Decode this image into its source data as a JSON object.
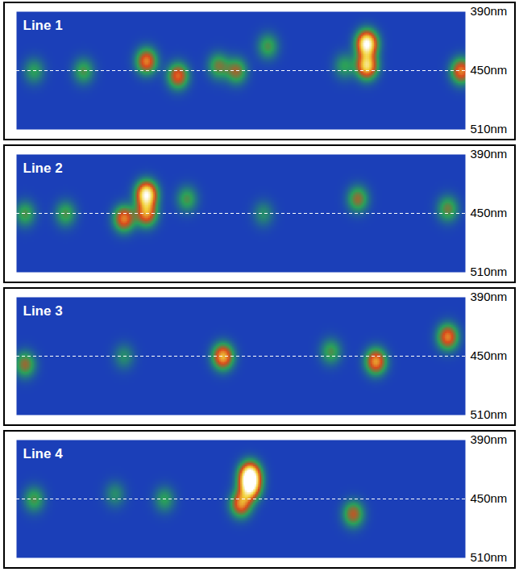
{
  "chart_data": [
    {
      "type": "heatmap",
      "title": "Line 1",
      "xlim": [
        0,
        100
      ],
      "ylim": [
        390,
        510
      ],
      "yticks": [
        {
          "value": 390,
          "label": "390nm"
        },
        {
          "value": 450,
          "label": "450nm"
        },
        {
          "value": 510,
          "label": "510nm"
        }
      ],
      "tick_labels": "y",
      "reference_line": 450,
      "color_range": [
        0,
        1
      ],
      "spots": [
        {
          "x": 4,
          "wavelength": 450,
          "intensity": 0.25
        },
        {
          "x": 15,
          "wavelength": 450,
          "intensity": 0.3
        },
        {
          "x": 29,
          "wavelength": 440,
          "intensity": 0.6
        },
        {
          "x": 36,
          "wavelength": 455,
          "intensity": 0.55
        },
        {
          "x": 45,
          "wavelength": 445,
          "intensity": 0.35
        },
        {
          "x": 49,
          "wavelength": 450,
          "intensity": 0.4
        },
        {
          "x": 56,
          "wavelength": 425,
          "intensity": 0.3
        },
        {
          "x": 73,
          "wavelength": 445,
          "intensity": 0.25
        },
        {
          "x": 78,
          "wavelength": 422,
          "intensity": 1.0
        },
        {
          "x": 78,
          "wavelength": 445,
          "intensity": 0.8
        },
        {
          "x": 99,
          "wavelength": 450,
          "intensity": 0.6
        }
      ]
    },
    {
      "type": "heatmap",
      "title": "Line 2",
      "xlim": [
        0,
        100
      ],
      "ylim": [
        390,
        510
      ],
      "yticks": [
        {
          "value": 390,
          "label": "390nm"
        },
        {
          "value": 450,
          "label": "450nm"
        },
        {
          "value": 510,
          "label": "510nm"
        }
      ],
      "tick_labels": "y",
      "reference_line": 450,
      "color_range": [
        0,
        1
      ],
      "spots": [
        {
          "x": 2,
          "wavelength": 450,
          "intensity": 0.3
        },
        {
          "x": 11,
          "wavelength": 450,
          "intensity": 0.3
        },
        {
          "x": 24,
          "wavelength": 455,
          "intensity": 0.6
        },
        {
          "x": 29,
          "wavelength": 430,
          "intensity": 0.95
        },
        {
          "x": 29,
          "wavelength": 450,
          "intensity": 0.6
        },
        {
          "x": 38,
          "wavelength": 435,
          "intensity": 0.3
        },
        {
          "x": 55,
          "wavelength": 450,
          "intensity": 0.2
        },
        {
          "x": 76,
          "wavelength": 435,
          "intensity": 0.4
        },
        {
          "x": 96,
          "wavelength": 445,
          "intensity": 0.35
        }
      ]
    },
    {
      "type": "heatmap",
      "title": "Line 3",
      "xlim": [
        0,
        100
      ],
      "ylim": [
        390,
        510
      ],
      "yticks": [
        {
          "value": 390,
          "label": "390nm"
        },
        {
          "value": 450,
          "label": "450nm"
        },
        {
          "value": 510,
          "label": "510nm"
        }
      ],
      "tick_labels": "y",
      "reference_line": 450,
      "color_range": [
        0,
        1
      ],
      "spots": [
        {
          "x": 2,
          "wavelength": 458,
          "intensity": 0.4
        },
        {
          "x": 24,
          "wavelength": 450,
          "intensity": 0.2
        },
        {
          "x": 46,
          "wavelength": 450,
          "intensity": 0.7
        },
        {
          "x": 70,
          "wavelength": 445,
          "intensity": 0.3
        },
        {
          "x": 80,
          "wavelength": 455,
          "intensity": 0.65
        },
        {
          "x": 96,
          "wavelength": 430,
          "intensity": 0.6
        }
      ]
    },
    {
      "type": "heatmap",
      "title": "Line 4",
      "xlim": [
        0,
        100
      ],
      "ylim": [
        390,
        510
      ],
      "yticks": [
        {
          "value": 390,
          "label": "390nm"
        },
        {
          "value": 450,
          "label": "450nm"
        },
        {
          "value": 510,
          "label": "510nm"
        }
      ],
      "tick_labels": "y",
      "reference_line": 450,
      "color_range": [
        0,
        1
      ],
      "spots": [
        {
          "x": 4,
          "wavelength": 450,
          "intensity": 0.3
        },
        {
          "x": 22,
          "wavelength": 445,
          "intensity": 0.2
        },
        {
          "x": 33,
          "wavelength": 450,
          "intensity": 0.25
        },
        {
          "x": 50,
          "wavelength": 455,
          "intensity": 0.6
        },
        {
          "x": 52,
          "wavelength": 425,
          "intensity": 1.0
        },
        {
          "x": 52,
          "wavelength": 438,
          "intensity": 0.8
        },
        {
          "x": 75,
          "wavelength": 465,
          "intensity": 0.45
        }
      ]
    }
  ]
}
